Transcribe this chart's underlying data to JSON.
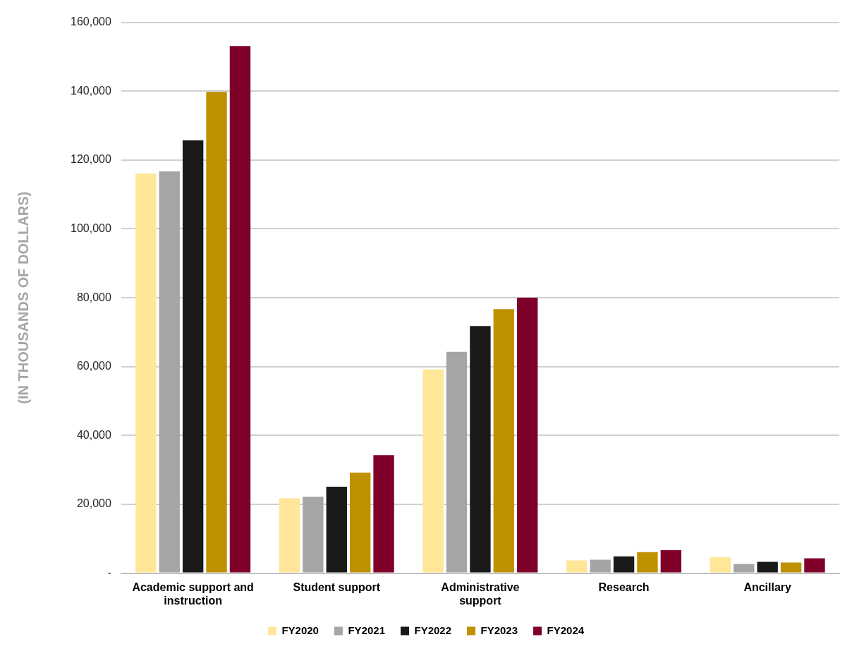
{
  "chart_data": {
    "type": "bar",
    "ylabel": "(IN THOUSANDS OF DOLLARS)",
    "categories": [
      "Academic support and instruction",
      "Student support",
      "Administrative support",
      "Research",
      "Ancillary"
    ],
    "series": [
      {
        "name": "FY2020",
        "color": "#ffe699",
        "values": [
          116100,
          21800,
          59200,
          3700,
          4700
        ]
      },
      {
        "name": "FY2021",
        "color": "#a5a5a5",
        "values": [
          116700,
          22200,
          64300,
          3900,
          2700
        ]
      },
      {
        "name": "FY2022",
        "color": "#1a1a1a",
        "values": [
          125700,
          25100,
          71800,
          4900,
          3300
        ]
      },
      {
        "name": "FY2023",
        "color": "#bf9000",
        "values": [
          139800,
          29200,
          76700,
          6100,
          3100
        ]
      },
      {
        "name": "FY2024",
        "color": "#7f0029",
        "values": [
          153100,
          34300,
          80000,
          6700,
          4300
        ]
      }
    ],
    "ylim": [
      0,
      160000
    ],
    "yticks": [
      {
        "value": 0,
        "label": "-"
      },
      {
        "value": 20000,
        "label": "20,000"
      },
      {
        "value": 40000,
        "label": "40,000"
      },
      {
        "value": 60000,
        "label": "60,000"
      },
      {
        "value": 80000,
        "label": "80,000"
      },
      {
        "value": 100000,
        "label": "100,000"
      },
      {
        "value": 120000,
        "label": "120,000"
      },
      {
        "value": 140000,
        "label": "140,000"
      },
      {
        "value": 160000,
        "label": "160,000"
      }
    ],
    "grid": "y",
    "legend": "bottom"
  }
}
